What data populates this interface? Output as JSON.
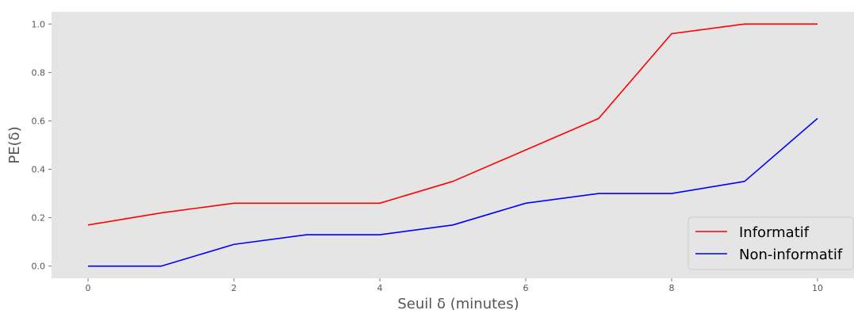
{
  "chart_data": {
    "type": "line",
    "title": "",
    "xlabel": "Seuil δ (minutes)",
    "ylabel": "PE(δ)",
    "xlim": [
      -0.5,
      10.5
    ],
    "ylim": [
      -0.05,
      1.05
    ],
    "xticks": [
      0,
      2,
      4,
      6,
      8,
      10
    ],
    "xtick_labels": [
      "0",
      "2",
      "4",
      "6",
      "8",
      "10"
    ],
    "yticks": [
      0.0,
      0.2,
      0.4,
      0.6,
      0.8,
      1.0
    ],
    "ytick_labels": [
      "0.0",
      "0.2",
      "0.4",
      "0.6",
      "0.8",
      "1.0"
    ],
    "grid": false,
    "legend_position": "bottom-right",
    "background": "#e5e5e5",
    "x": [
      0,
      1,
      2,
      3,
      4,
      5,
      6,
      7,
      8,
      9,
      10
    ],
    "series": [
      {
        "name": "Informatif",
        "color": "#ff0000",
        "values": [
          0.17,
          0.22,
          0.26,
          0.26,
          0.26,
          0.35,
          0.48,
          0.61,
          0.96,
          1.0,
          1.0
        ]
      },
      {
        "name": "Non-informatif",
        "color": "#0000ff",
        "values": [
          0.0,
          0.0,
          0.09,
          0.13,
          0.13,
          0.17,
          0.26,
          0.3,
          0.3,
          0.35,
          0.61
        ]
      }
    ]
  }
}
